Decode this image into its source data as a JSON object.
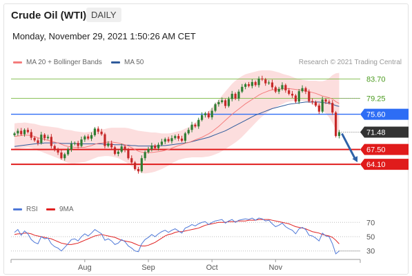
{
  "header": {
    "title": "Crude Oil (WTI)",
    "period_badge": "DAILY",
    "datetime": "Monday, November 29, 2021 1:50:26 AM CET"
  },
  "price_legend": {
    "ma20_label": "MA 20 + Bollinger Bands",
    "ma20_color": "#f47c7c",
    "ma50_label": "MA 50",
    "ma50_color": "#2f5b9c",
    "copyright": "Research © 2021 Trading Central"
  },
  "rsi_legend": {
    "rsi_label": "RSI",
    "rsi_color": "#4e78d8",
    "ma9_label": "9MA",
    "ma9_color": "#e02020"
  },
  "colors": {
    "up": "#2e7d32",
    "down": "#c62828",
    "band": "#fbd3d3",
    "support": "#e01b1b",
    "pivot": "#2d6df5",
    "resistance": "#7dbb48",
    "arrow": "#2f62a8",
    "last": "#333333"
  },
  "chart_data": [
    {
      "type": "candlestick",
      "x_axis_labels": [
        "Aug",
        "Sep",
        "Oct",
        "Nov"
      ],
      "ylim": [
        56.5,
        86.0
      ],
      "levels": [
        {
          "value": 83.7,
          "label": "83.70",
          "kind": "resistance"
        },
        {
          "value": 79.25,
          "label": "79.25",
          "kind": "resistance"
        },
        {
          "value": 75.6,
          "label": "75.60",
          "kind": "pivot"
        },
        {
          "value": 71.48,
          "label": "71.48",
          "kind": "last"
        },
        {
          "value": 67.5,
          "label": "67.50",
          "kind": "support"
        },
        {
          "value": 64.1,
          "label": "64.10",
          "kind": "support"
        }
      ],
      "closes": [
        71.2,
        71.8,
        71.0,
        72.0,
        71.5,
        70.2,
        69.6,
        69.0,
        70.9,
        70.1,
        70.4,
        68.3,
        67.4,
        66.8,
        65.5,
        66.4,
        67.5,
        68.8,
        69.0,
        68.3,
        69.8,
        70.5,
        70.0,
        70.8,
        72.3,
        71.6,
        71.0,
        68.3,
        68.9,
        68.0,
        66.5,
        67.0,
        68.2,
        67.4,
        65.5,
        64.5,
        63.0,
        62.5,
        65.5,
        66.9,
        67.6,
        68.4,
        67.8,
        68.6,
        69.3,
        69.9,
        69.4,
        70.1,
        70.6,
        70.0,
        69.5,
        71.2,
        72.0,
        73.2,
        72.8,
        74.3,
        75.4,
        75.8,
        74.9,
        76.4,
        77.9,
        78.4,
        78.8,
        77.5,
        79.1,
        80.3,
        79.2,
        80.8,
        81.9,
        82.5,
        82.1,
        83.0,
        82.3,
        83.8,
        83.6,
        82.7,
        82.9,
        81.8,
        80.8,
        81.4,
        82.3,
        81.1,
        80.3,
        79.9,
        78.5,
        80.9,
        81.6,
        80.8,
        78.6,
        78.4,
        77.6,
        76.2,
        79.0,
        78.5,
        78.2,
        76.0,
        70.6,
        71.48
      ],
      "ma20": [
        70.5,
        70.6,
        70.7,
        70.8,
        70.8,
        70.7,
        70.5,
        70.2,
        70.0,
        69.8,
        69.6,
        69.4,
        69.2,
        69.0,
        68.7,
        68.4,
        68.2,
        68.1,
        68.0,
        68.0,
        68.0,
        68.0,
        68.2,
        68.4,
        68.7,
        68.9,
        69.0,
        69.1,
        69.2,
        69.2,
        69.1,
        69.0,
        68.8,
        68.6,
        68.3,
        67.9,
        67.5,
        67.1,
        66.9,
        66.8,
        66.8,
        66.8,
        66.9,
        67.0,
        67.1,
        67.3,
        67.5,
        67.8,
        68.1,
        68.4,
        68.6,
        68.9,
        69.1,
        69.4,
        69.7,
        70.0,
        70.3,
        70.7,
        71.1,
        71.6,
        72.2,
        72.8,
        73.5,
        74.2,
        74.9,
        75.6,
        76.2,
        76.8,
        77.4,
        78.0,
        78.5,
        79.0,
        79.5,
        80.0,
        80.4,
        80.7,
        81.0,
        81.2,
        81.3,
        81.4,
        81.4,
        81.5,
        81.5,
        81.4,
        81.3,
        81.2,
        81.1,
        81.0,
        80.8,
        80.6,
        80.4,
        80.1,
        79.8,
        79.6,
        79.4,
        79.1,
        78.5,
        78.1
      ],
      "ma50": [
        68.2,
        68.3,
        68.4,
        68.5,
        68.6,
        68.7,
        68.8,
        68.9,
        68.9,
        69.0,
        69.0,
        69.0,
        69.0,
        69.0,
        68.9,
        68.9,
        68.9,
        68.9,
        68.9,
        68.8,
        68.8,
        68.8,
        68.8,
        68.8,
        68.8,
        68.8,
        68.8,
        68.7,
        68.7,
        68.7,
        68.6,
        68.6,
        68.6,
        68.5,
        68.5,
        68.4,
        68.4,
        68.3,
        68.3,
        68.3,
        68.3,
        68.3,
        68.3,
        68.3,
        68.4,
        68.4,
        68.5,
        68.6,
        68.7,
        68.8,
        68.9,
        69.0,
        69.1,
        69.3,
        69.5,
        69.7,
        69.9,
        70.1,
        70.3,
        70.6,
        70.9,
        71.2,
        71.5,
        71.8,
        72.2,
        72.6,
        73.0,
        73.4,
        73.8,
        74.2,
        74.6,
        75.0,
        75.4,
        75.7,
        76.0,
        76.3,
        76.6,
        76.9,
        77.1,
        77.3,
        77.5,
        77.7,
        77.9,
        78.0,
        78.1,
        78.2,
        78.3,
        78.4,
        78.4,
        78.4,
        78.4,
        78.4,
        78.3,
        78.2,
        78.1,
        77.9,
        77.6,
        77.4
      ],
      "bollinger_halfwidth": [
        3.0,
        3.0,
        2.9,
        2.9,
        2.8,
        2.8,
        2.9,
        3.0,
        3.0,
        3.1,
        3.2,
        3.3,
        3.4,
        3.5,
        3.6,
        3.7,
        3.8,
        3.8,
        3.7,
        3.6,
        3.5,
        3.4,
        3.3,
        3.2,
        3.2,
        3.1,
        3.1,
        3.1,
        3.2,
        3.3,
        3.4,
        3.5,
        3.7,
        3.9,
        4.1,
        4.3,
        4.5,
        4.7,
        4.8,
        4.8,
        4.7,
        4.6,
        4.5,
        4.3,
        4.1,
        3.9,
        3.7,
        3.5,
        3.4,
        3.3,
        3.3,
        3.4,
        3.5,
        3.7,
        4.0,
        4.3,
        4.6,
        4.9,
        5.2,
        5.5,
        5.8,
        6.1,
        6.4,
        6.6,
        6.8,
        7.0,
        7.1,
        7.1,
        7.0,
        6.8,
        6.5,
        6.2,
        5.9,
        5.6,
        5.3,
        5.0,
        4.7,
        4.4,
        4.1,
        3.8,
        3.5,
        3.2,
        3.0,
        2.8,
        2.6,
        2.5,
        2.4,
        2.4,
        2.5,
        2.7,
        2.9,
        3.1,
        3.4,
        3.8,
        4.5,
        5.5,
        6.5,
        7.0
      ]
    },
    {
      "type": "line",
      "name": "RSI",
      "x_axis_labels": [
        "Aug",
        "Sep",
        "Oct",
        "Nov"
      ],
      "ylim": [
        22,
        78
      ],
      "ticks": [
        {
          "value": 70,
          "label": "70"
        },
        {
          "value": 50,
          "label": "50"
        },
        {
          "value": 30,
          "label": "30"
        }
      ],
      "rsi": [
        56,
        60,
        52,
        58,
        54,
        46,
        42,
        40,
        50,
        47,
        48,
        40,
        36,
        34,
        30,
        35,
        40,
        46,
        47,
        44,
        50,
        54,
        51,
        55,
        60,
        57,
        54,
        45,
        47,
        44,
        39,
        41,
        46,
        43,
        37,
        34,
        30,
        29,
        40,
        46,
        49,
        53,
        50,
        54,
        57,
        59,
        56,
        59,
        61,
        58,
        55,
        62,
        64,
        67,
        65,
        68,
        70,
        71,
        67,
        70,
        72,
        73,
        74,
        69,
        72,
        74,
        70,
        73,
        74,
        75,
        74,
        76,
        73,
        76,
        75,
        72,
        73,
        68,
        64,
        66,
        69,
        64,
        61,
        59,
        54,
        61,
        63,
        60,
        52,
        51,
        48,
        44,
        55,
        51,
        50,
        40,
        26,
        30
      ],
      "rsi_ma9": [
        53,
        54,
        54,
        55,
        55,
        54,
        52,
        51,
        50,
        49,
        48,
        47,
        45,
        43,
        41,
        40,
        39,
        39,
        40,
        41,
        43,
        45,
        47,
        49,
        51,
        52,
        53,
        52,
        51,
        50,
        49,
        47,
        45,
        44,
        43,
        42,
        40,
        38,
        37,
        37,
        38,
        40,
        42,
        45,
        48,
        51,
        53,
        54,
        56,
        57,
        57,
        58,
        59,
        60,
        61,
        62,
        64,
        66,
        67,
        68,
        69,
        70,
        70,
        70,
        71,
        71,
        71,
        72,
        72,
        72,
        73,
        73,
        73,
        74,
        74,
        74,
        74,
        73,
        72,
        71,
        70,
        69,
        68,
        66,
        64,
        63,
        62,
        61,
        59,
        57,
        56,
        55,
        53,
        52,
        51,
        49,
        45,
        40
      ]
    }
  ]
}
